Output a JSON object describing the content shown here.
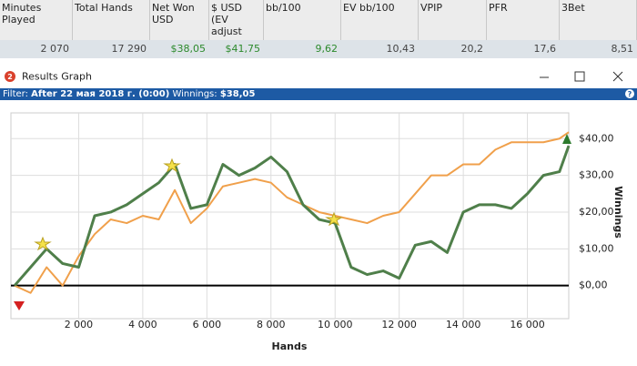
{
  "table": {
    "headers": [
      "Minutes Played",
      "Total Hands",
      "Net Won USD",
      "$ USD (EV adjust",
      "bb/100",
      "EV bb/100",
      "VPIP",
      "PFR",
      "3Bet"
    ],
    "values": [
      "2 070",
      "17 290",
      "$38,05",
      "$41,75",
      "9,62",
      "10,43",
      "20,2",
      "17,6",
      "8,51"
    ]
  },
  "window": {
    "title": "Results Graph"
  },
  "filter": {
    "label": "Filter:",
    "value": "After 22 мая 2018 г. (0:00)",
    "winnings_label": "Winnings:",
    "winnings": "$38,05"
  },
  "chart_data": {
    "type": "line",
    "x_label": "Hands",
    "y_label": "Winnings",
    "grid": true,
    "zero_line": true,
    "x": [
      0,
      500,
      1000,
      1500,
      2000,
      2500,
      3000,
      3500,
      4000,
      4500,
      5000,
      5500,
      6000,
      6500,
      7000,
      7500,
      8000,
      8500,
      9000,
      9500,
      10000,
      10500,
      11000,
      11500,
      12000,
      12500,
      13000,
      13500,
      14000,
      14500,
      15000,
      15500,
      16000,
      16500,
      17000,
      17290
    ],
    "series": [
      {
        "color": "#f0a04b",
        "values": [
          0,
          -2,
          5,
          0,
          8,
          14,
          18,
          17,
          19,
          18,
          26,
          17,
          21,
          27,
          28,
          29,
          28,
          24,
          22,
          20,
          19,
          18,
          17,
          19,
          20,
          25,
          30,
          30,
          33,
          33,
          37,
          39,
          39,
          39,
          40,
          41.75
        ]
      },
      {
        "color": "#4f7f4a",
        "values": [
          0,
          5,
          10,
          6,
          5,
          19,
          20,
          22,
          25,
          28,
          33,
          21,
          22,
          33,
          30,
          32,
          35,
          31,
          22,
          18,
          17,
          5,
          3,
          4,
          2,
          11,
          12,
          9,
          20,
          22,
          22,
          21,
          25,
          30,
          31,
          38.05
        ]
      }
    ],
    "xlim": [
      0,
      17290
    ],
    "ylim": [
      -9,
      47
    ],
    "xticks": [
      {
        "value": 2000,
        "label": "2 000"
      },
      {
        "value": 4000,
        "label": "4 000"
      },
      {
        "value": 6000,
        "label": "6 000"
      },
      {
        "value": 8000,
        "label": "8 000"
      },
      {
        "value": 10000,
        "label": "10 000"
      },
      {
        "value": 12000,
        "label": "12 000"
      },
      {
        "value": 14000,
        "label": "14 000"
      },
      {
        "value": 16000,
        "label": "16 000"
      }
    ],
    "yticks": [
      {
        "value": 0,
        "label": "$0,00"
      },
      {
        "value": 10,
        "label": "$10,00"
      },
      {
        "value": 20,
        "label": "$20,00"
      },
      {
        "value": 30,
        "label": "$30,00"
      },
      {
        "value": 40,
        "label": "$40,00"
      }
    ]
  }
}
